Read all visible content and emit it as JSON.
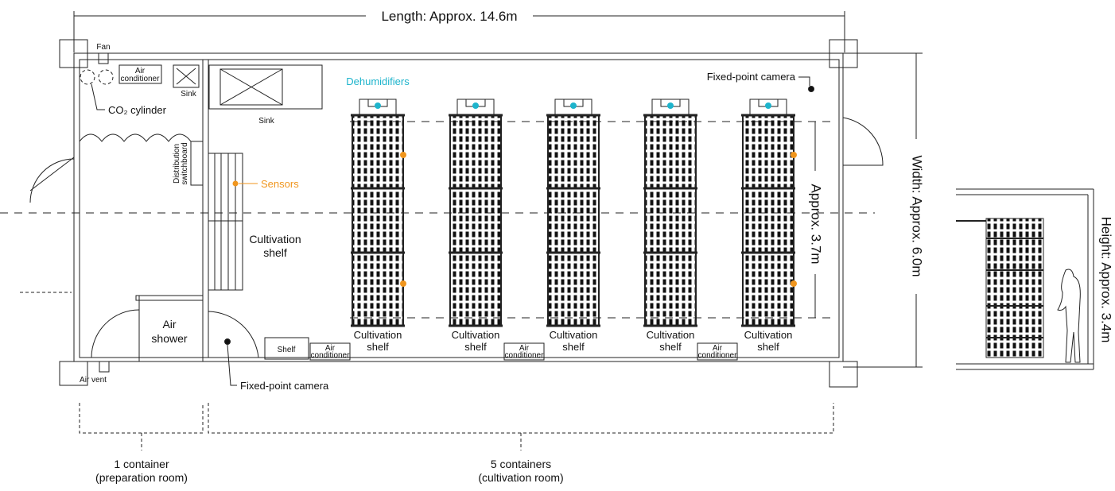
{
  "dimensions": {
    "length": "Length: Approx. 14.6m",
    "width": "Width: Approx. 6.0m",
    "shelf_span": "Approx. 3.7m",
    "height": "Height: Approx. 3.4m"
  },
  "preparation_room": {
    "fan": "Fan",
    "air_conditioner": [
      "Air",
      "conditioner"
    ],
    "sink": "Sink",
    "co2_cylinder": "CO₂ cylinder",
    "switchboard": [
      "Distribution",
      "switchboard"
    ],
    "air_shower": [
      "Air",
      "shower"
    ],
    "air_vent": "Air vent"
  },
  "cultivation_room": {
    "sink": "Sink",
    "dehumidifiers": "Dehumidifiers",
    "sensors": "Sensors",
    "cameras": [
      "Fixed-point camera",
      "Fixed-point camera"
    ],
    "side_shelf": [
      "Cultivation",
      "shelf"
    ],
    "shelf": "Shelf",
    "air_conditioners": [
      [
        "Air",
        "conditioner"
      ],
      [
        "Air",
        "conditioner"
      ],
      [
        "Air",
        "conditioner"
      ]
    ],
    "shelf_labels": [
      [
        "Cultivation",
        "shelf"
      ],
      [
        "Cultivation",
        "shelf"
      ],
      [
        "Cultivation",
        "shelf"
      ],
      [
        "Cultivation",
        "shelf"
      ],
      [
        "Cultivation",
        "shelf"
      ]
    ]
  },
  "footer": {
    "preparation": [
      "1 container",
      "(preparation room)"
    ],
    "cultivation": [
      "5 containers",
      "(cultivation room)"
    ]
  }
}
